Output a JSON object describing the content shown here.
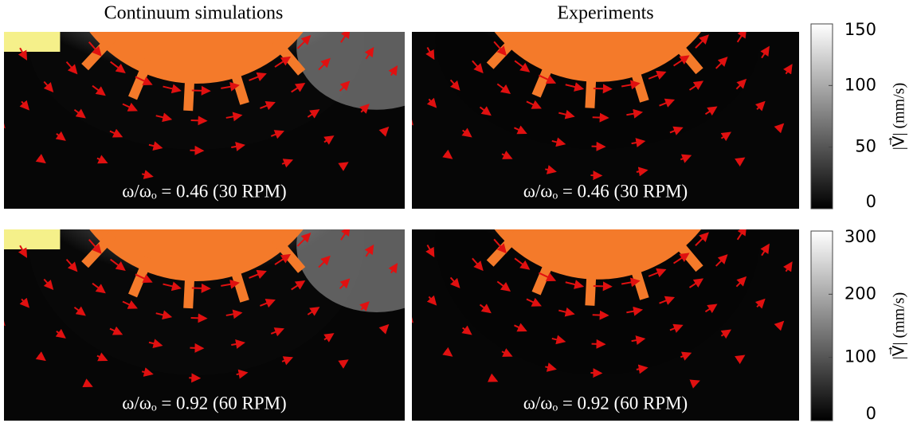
{
  "columns": [
    "Continuum simulations",
    "Experiments"
  ],
  "rows": [
    {
      "panels": [
        "ω/ωₒ = 0.46 (30 RPM)",
        "ω/ωₒ = 0.46 (30 RPM)"
      ],
      "colorbar": {
        "lim": [
          0,
          150
        ],
        "ticks": [
          0,
          50,
          100,
          150
        ],
        "label": "|V⃗| (mm/s)"
      }
    },
    {
      "panels": [
        "ω/ωₒ = 0.92 (60 RPM)",
        "ω/ωₒ = 0.92 (60 RPM)"
      ],
      "colorbar": {
        "lim": [
          0,
          300
        ],
        "ticks": [
          0,
          100,
          200,
          300
        ],
        "label": "|V⃗| (mm/s)"
      }
    }
  ]
}
